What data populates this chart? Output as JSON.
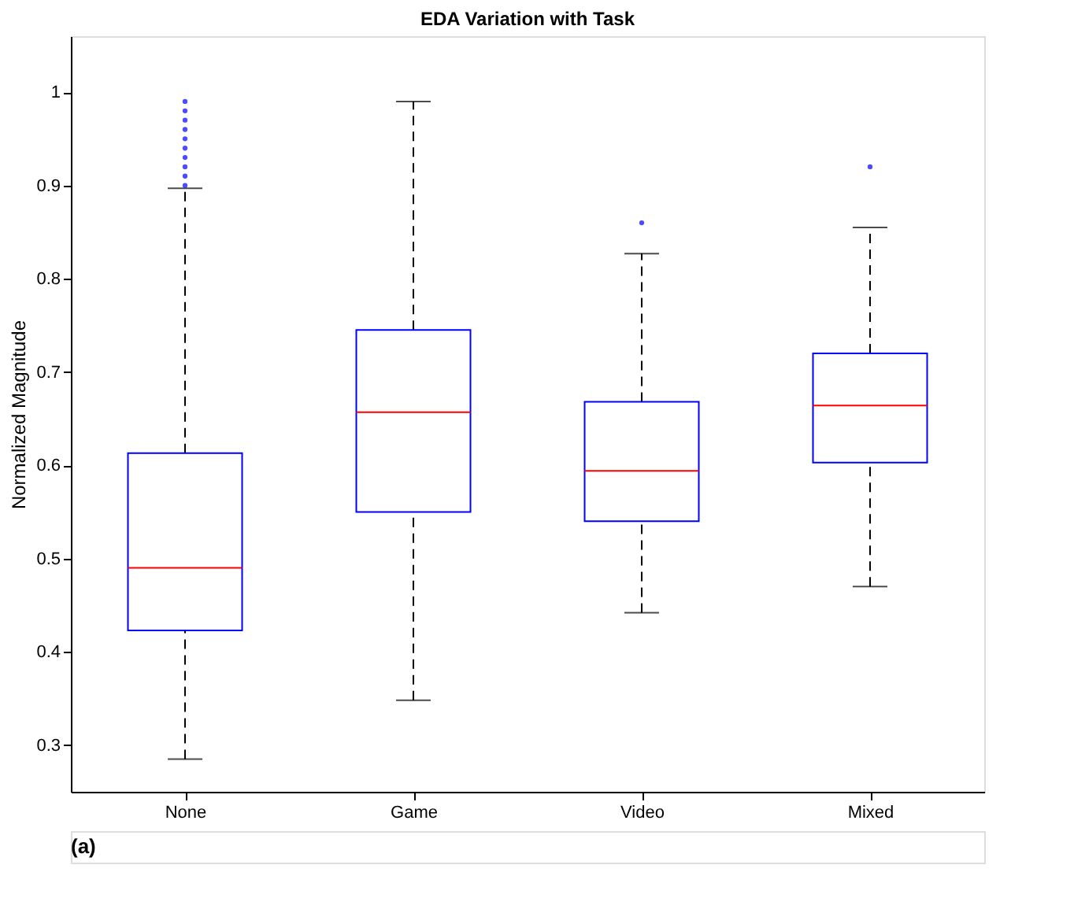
{
  "chart_data": {
    "type": "box",
    "title": "EDA Variation with Task",
    "ylabel": "Normalized Magnitude",
    "categories": [
      "None",
      "Game",
      "Video",
      "Mixed"
    ],
    "boxes": [
      {
        "low": 0.285,
        "q1": 0.423,
        "median": 0.49,
        "q3": 0.613,
        "high": 0.897,
        "outliers": [
          0.9,
          0.91,
          0.92,
          0.93,
          0.94,
          0.95,
          0.96,
          0.97,
          0.98,
          0.99
        ]
      },
      {
        "low": 0.348,
        "q1": 0.55,
        "median": 0.657,
        "q3": 0.745,
        "high": 0.99
      },
      {
        "low": 0.442,
        "q1": 0.54,
        "median": 0.594,
        "q3": 0.668,
        "high": 0.827,
        "outliers": [
          0.86
        ]
      },
      {
        "low": 0.47,
        "q1": 0.603,
        "median": 0.664,
        "q3": 0.72,
        "high": 0.855,
        "outliers": [
          0.92
        ]
      }
    ],
    "color": "#0000ff",
    "line_style": "dashed",
    "marker": "circle",
    "ylim": [
      0.25,
      1.06
    ],
    "yticks": [
      0.3,
      0.4,
      0.5,
      0.6,
      0.7,
      0.8,
      0.9,
      1
    ],
    "grid": false,
    "annotations": [
      "(a)"
    ]
  }
}
